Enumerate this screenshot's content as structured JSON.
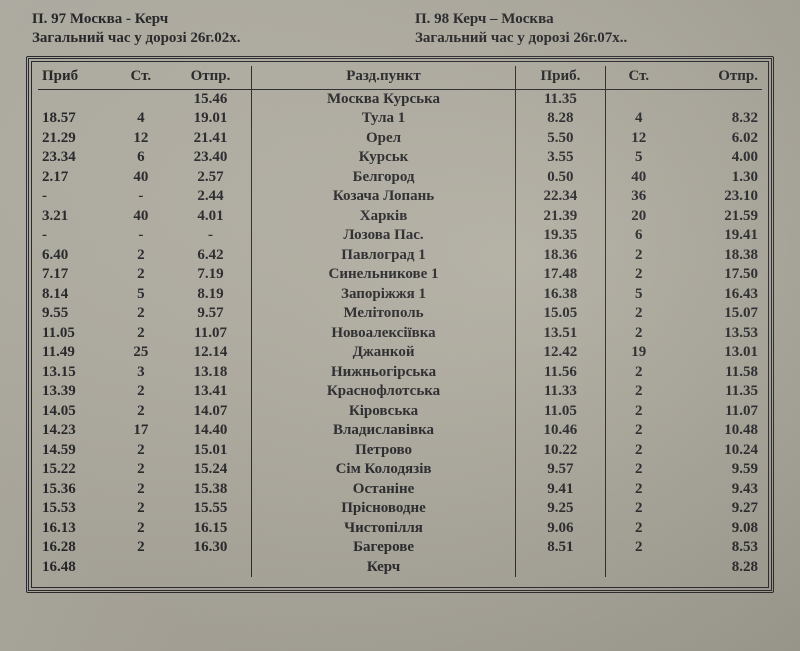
{
  "header": {
    "left_line1": "П. 97 Москва - Керч",
    "left_line2": "Загальний час у дорозі 26г.02х.",
    "right_line1": "П. 98 Керч – Москва",
    "right_line2": "Загальний час у дорозі 26г.07х.."
  },
  "columns": {
    "prib1": "Приб",
    "st1": "Ст.",
    "otpr1": "Отпр.",
    "station": "Разд.пункт",
    "prib2": "Приб.",
    "st2": "Ст.",
    "otpr2": "Отпр."
  },
  "col_widths": [
    "9%",
    "7%",
    "10%",
    "32%",
    "11%",
    "8%",
    "11%"
  ],
  "rows": [
    {
      "prib1": "",
      "st1": "",
      "otpr1": "15.46",
      "station": "Москва Курська",
      "prib2": "11.35",
      "st2": "",
      "otpr2": ""
    },
    {
      "prib1": "18.57",
      "st1": "4",
      "otpr1": "19.01",
      "station": "Тула 1",
      "prib2": "8.28",
      "st2": "4",
      "otpr2": "8.32"
    },
    {
      "prib1": "21.29",
      "st1": "12",
      "otpr1": "21.41",
      "station": "Орел",
      "prib2": "5.50",
      "st2": "12",
      "otpr2": "6.02"
    },
    {
      "prib1": "23.34",
      "st1": "6",
      "otpr1": "23.40",
      "station": "Курськ",
      "prib2": "3.55",
      "st2": "5",
      "otpr2": "4.00"
    },
    {
      "prib1": "2.17",
      "st1": "40",
      "otpr1": "2.57",
      "station": "Белгород",
      "prib2": "0.50",
      "st2": "40",
      "otpr2": "1.30"
    },
    {
      "prib1": "-",
      "st1": "-",
      "otpr1": "2.44",
      "station": "Козача Лопань",
      "prib2": "22.34",
      "st2": "36",
      "otpr2": "23.10"
    },
    {
      "prib1": "3.21",
      "st1": "40",
      "otpr1": "4.01",
      "station": "Харків",
      "prib2": "21.39",
      "st2": "20",
      "otpr2": "21.59"
    },
    {
      "prib1": "-",
      "st1": "-",
      "otpr1": "-",
      "station": "Лозова Пас.",
      "prib2": "19.35",
      "st2": "6",
      "otpr2": "19.41"
    },
    {
      "prib1": "6.40",
      "st1": "2",
      "otpr1": "6.42",
      "station": "Павлоград 1",
      "prib2": "18.36",
      "st2": "2",
      "otpr2": "18.38"
    },
    {
      "prib1": "7.17",
      "st1": "2",
      "otpr1": "7.19",
      "station": "Синельникове 1",
      "prib2": "17.48",
      "st2": "2",
      "otpr2": "17.50"
    },
    {
      "prib1": "8.14",
      "st1": "5",
      "otpr1": "8.19",
      "station": "Запоріжжя 1",
      "prib2": "16.38",
      "st2": "5",
      "otpr2": "16.43"
    },
    {
      "prib1": "9.55",
      "st1": "2",
      "otpr1": "9.57",
      "station": "Мелітополь",
      "prib2": "15.05",
      "st2": "2",
      "otpr2": "15.07"
    },
    {
      "prib1": "11.05",
      "st1": "2",
      "otpr1": "11.07",
      "station": "Новоалексіївка",
      "prib2": "13.51",
      "st2": "2",
      "otpr2": "13.53"
    },
    {
      "prib1": "11.49",
      "st1": "25",
      "otpr1": "12.14",
      "station": "Джанкой",
      "prib2": "12.42",
      "st2": "19",
      "otpr2": "13.01"
    },
    {
      "prib1": "13.15",
      "st1": "3",
      "otpr1": "13.18",
      "station": "Нижньогірська",
      "prib2": "11.56",
      "st2": "2",
      "otpr2": "11.58"
    },
    {
      "prib1": "13.39",
      "st1": "2",
      "otpr1": "13.41",
      "station": "Краснофлотська",
      "prib2": "11.33",
      "st2": "2",
      "otpr2": "11.35"
    },
    {
      "prib1": "14.05",
      "st1": "2",
      "otpr1": "14.07",
      "station": "Кіровська",
      "prib2": "11.05",
      "st2": "2",
      "otpr2": "11.07"
    },
    {
      "prib1": "14.23",
      "st1": "17",
      "otpr1": "14.40",
      "station": "Владиславівка",
      "prib2": "10.46",
      "st2": "2",
      "otpr2": "10.48"
    },
    {
      "prib1": "14.59",
      "st1": "2",
      "otpr1": "15.01",
      "station": "Петрово",
      "prib2": "10.22",
      "st2": "2",
      "otpr2": "10.24"
    },
    {
      "prib1": "15.22",
      "st1": "2",
      "otpr1": "15.24",
      "station": "Сім Колодязів",
      "prib2": "9.57",
      "st2": "2",
      "otpr2": "9.59"
    },
    {
      "prib1": "15.36",
      "st1": "2",
      "otpr1": "15.38",
      "station": "Останіне",
      "prib2": "9.41",
      "st2": "2",
      "otpr2": "9.43"
    },
    {
      "prib1": "15.53",
      "st1": "2",
      "otpr1": "15.55",
      "station": "Прісноводне",
      "prib2": "9.25",
      "st2": "2",
      "otpr2": "9.27"
    },
    {
      "prib1": "16.13",
      "st1": "2",
      "otpr1": "16.15",
      "station": "Чистопілля",
      "prib2": "9.06",
      "st2": "2",
      "otpr2": "9.08"
    },
    {
      "prib1": "16.28",
      "st1": "2",
      "otpr1": "16.30",
      "station": "Багерове",
      "prib2": "8.51",
      "st2": "2",
      "otpr2": "8.53"
    },
    {
      "prib1": "16.48",
      "st1": "",
      "otpr1": "",
      "station": "Керч",
      "prib2": "",
      "st2": "",
      "otpr2": "8.28"
    }
  ],
  "style": {
    "background_color": "#b8b4a8",
    "text_color": "#2b2b2e",
    "border_color": "#2d2d32",
    "font_family": "Times New Roman",
    "header_fontsize_pt": 11,
    "body_fontsize_pt": 11,
    "outer_border": "double",
    "table_type": "table"
  }
}
